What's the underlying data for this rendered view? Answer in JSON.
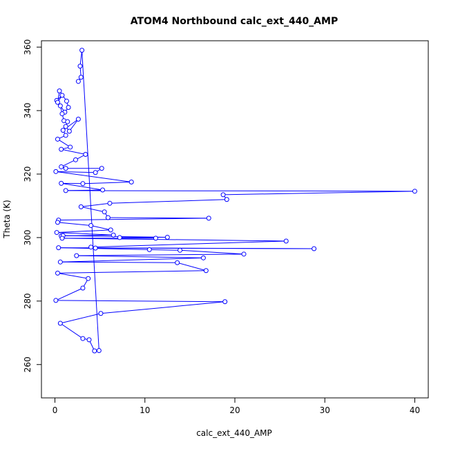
{
  "chart_data": {
    "type": "scatter",
    "title": "ATOM4 Northbound calc_ext_440_AMP",
    "xlabel": "calc_ext_440_AMP",
    "ylabel": "Theta (K)",
    "xlim": [
      -1.5,
      41.5
    ],
    "ylim": [
      249.5,
      362
    ],
    "xticks": [
      0,
      10,
      20,
      30,
      40
    ],
    "yticks": [
      260,
      280,
      300,
      320,
      340,
      360
    ],
    "grid": false,
    "series": [
      {
        "color": "#0000ff",
        "marker": "open-circle",
        "line": true,
        "points": [
          [
            0.2,
            343.2
          ],
          [
            0.8,
            344.8
          ],
          [
            0.3,
            342.6
          ],
          [
            0.5,
            346.2
          ],
          [
            1.3,
            343.0
          ],
          [
            1.5,
            341.0
          ],
          [
            1.1,
            339.5
          ],
          [
            0.6,
            341.5
          ],
          [
            0.8,
            339.0
          ],
          [
            1.0,
            336.8
          ],
          [
            1.4,
            336.5
          ],
          [
            1.2,
            335.0
          ],
          [
            1.6,
            333.5
          ],
          [
            2.6,
            337.3
          ],
          [
            0.9,
            333.8
          ],
          [
            1.2,
            332.2
          ],
          [
            0.3,
            331.0
          ],
          [
            1.7,
            328.5
          ],
          [
            0.7,
            327.8
          ],
          [
            3.4,
            326.2
          ],
          [
            2.3,
            324.5
          ],
          [
            0.7,
            322.3
          ],
          [
            1.2,
            321.8
          ],
          [
            5.2,
            321.8
          ],
          [
            4.5,
            320.5
          ],
          [
            0.1,
            320.8
          ],
          [
            8.5,
            317.5
          ],
          [
            3.1,
            317.0
          ],
          [
            0.7,
            317.1
          ],
          [
            5.3,
            315.0
          ],
          [
            1.2,
            314.8
          ],
          [
            40.0,
            314.6
          ],
          [
            18.7,
            313.5
          ],
          [
            19.1,
            312.0
          ],
          [
            6.1,
            310.8
          ],
          [
            2.9,
            309.7
          ],
          [
            5.5,
            308.1
          ],
          [
            5.9,
            306.3
          ],
          [
            17.1,
            306.1
          ],
          [
            0.4,
            305.5
          ],
          [
            0.3,
            304.8
          ],
          [
            4.0,
            303.8
          ],
          [
            6.2,
            302.4
          ],
          [
            0.2,
            301.6
          ],
          [
            6.5,
            300.8
          ],
          [
            0.7,
            300.5
          ],
          [
            0.9,
            300.6
          ],
          [
            12.5,
            300.1
          ],
          [
            7.2,
            300.0
          ],
          [
            11.2,
            299.8
          ],
          [
            0.8,
            299.8
          ],
          [
            25.7,
            298.9
          ],
          [
            4.0,
            297.0
          ],
          [
            4.5,
            296.7
          ],
          [
            28.8,
            296.5
          ],
          [
            0.4,
            296.8
          ],
          [
            10.5,
            296.2
          ],
          [
            13.9,
            296.0
          ],
          [
            21.0,
            294.8
          ],
          [
            2.4,
            294.3
          ],
          [
            16.5,
            293.6
          ],
          [
            0.6,
            292.3
          ],
          [
            13.6,
            292.1
          ],
          [
            16.8,
            289.6
          ],
          [
            0.3,
            288.8
          ],
          [
            3.7,
            287.1
          ],
          [
            3.1,
            284.1
          ],
          [
            0.1,
            280.2
          ],
          [
            18.9,
            279.8
          ],
          [
            5.1,
            276.1
          ],
          [
            0.6,
            273.0
          ],
          [
            3.1,
            268.2
          ],
          [
            3.8,
            267.8
          ],
          [
            4.4,
            264.3
          ],
          [
            4.9,
            264.4
          ],
          [
            3.0,
            359.0
          ],
          [
            2.8,
            354.0
          ],
          [
            2.9,
            350.5
          ],
          [
            2.6,
            349.2
          ]
        ]
      }
    ]
  }
}
